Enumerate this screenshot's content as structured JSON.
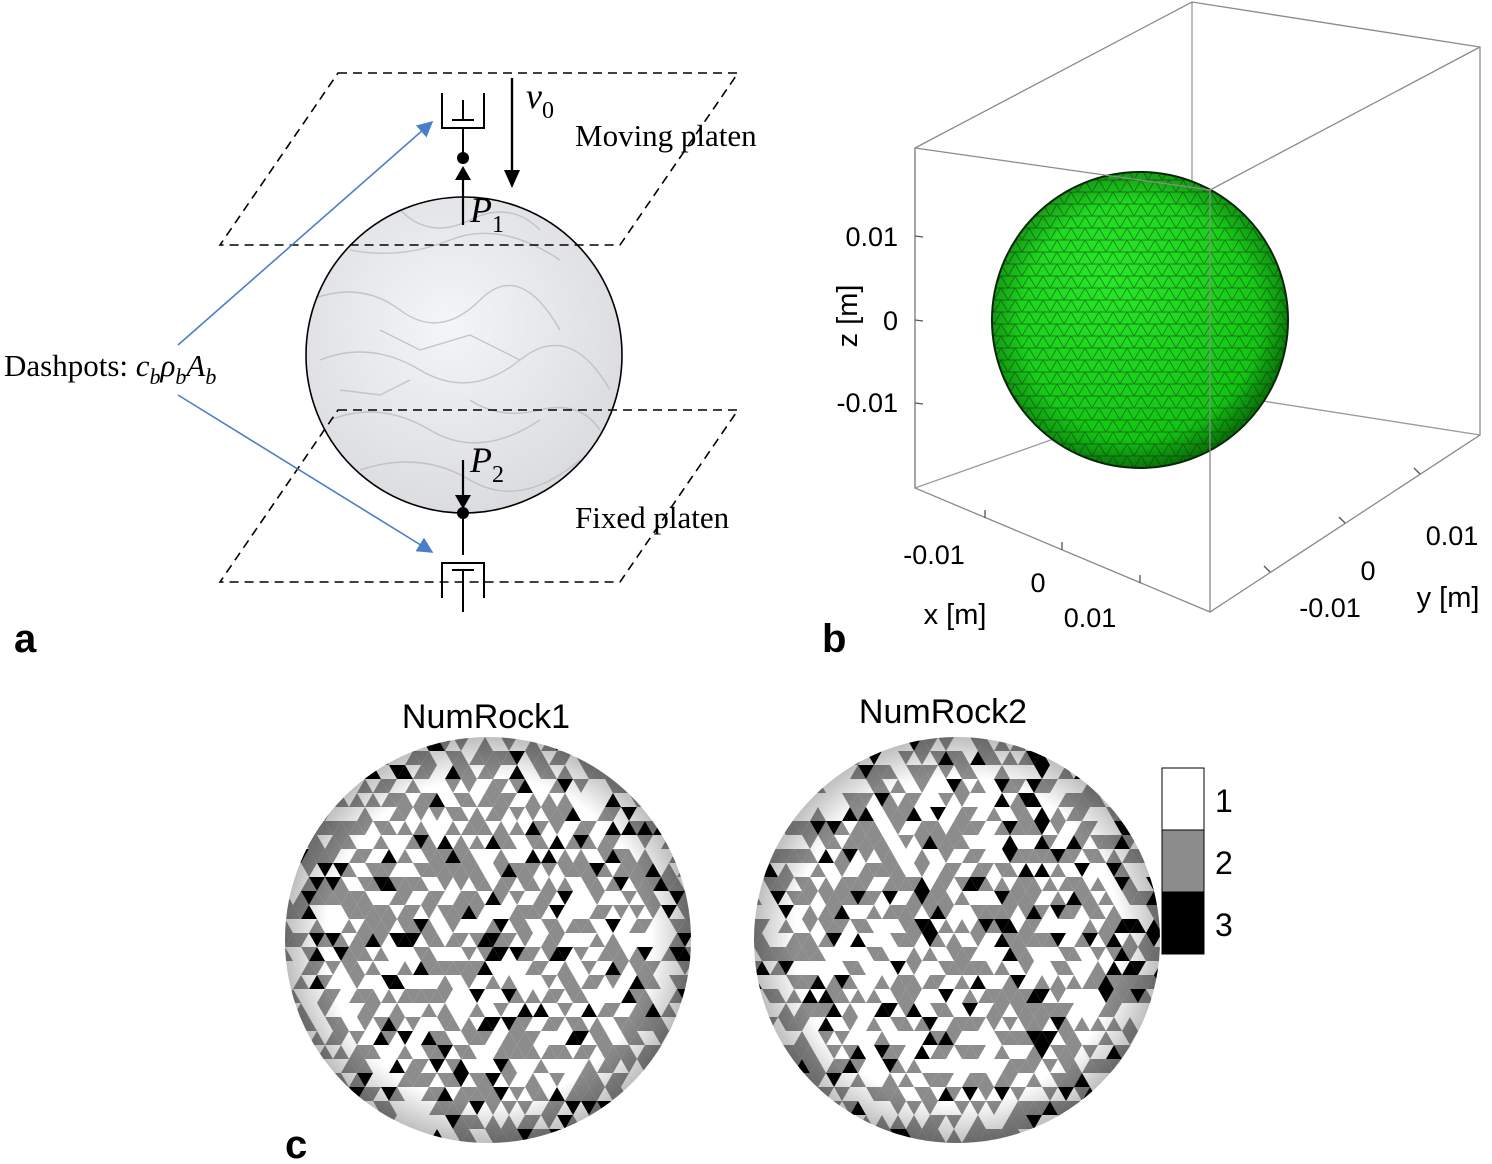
{
  "panels": {
    "a": {
      "letter": "a",
      "moving_platen": "Moving platen",
      "fixed_platen": "Fixed platen",
      "velocity_label": "v",
      "velocity_sub": "0",
      "force_top": "P",
      "force_top_sub": "1",
      "force_bottom": "P",
      "force_bottom_sub": "2",
      "dashpots_prefix": "Dashpots: ",
      "dashpots_formula": [
        {
          "t": "c",
          "s": "b"
        },
        {
          "t": "ρ",
          "s": "b"
        },
        {
          "t": "A",
          "s": "b"
        }
      ],
      "colors": {
        "arrow": "#4a7fc8",
        "outline": "#000000",
        "rock": "#e6e7ea"
      }
    },
    "b": {
      "letter": "b",
      "z_axis_label": "z [m]",
      "x_axis_label": "x [m]",
      "y_axis_label": "y [m]",
      "z_ticks": [
        "0.01",
        "0",
        "-0.01"
      ],
      "x_ticks": [
        "-0.01",
        "0",
        "0.01"
      ],
      "y_ticks": [
        "0.01",
        "0",
        "-0.01"
      ],
      "colors": {
        "sphere": "#17d417",
        "mesh": "#0b3d0b",
        "box": "#9a9a9a"
      }
    },
    "c": {
      "letter": "c",
      "titles": [
        "NumRock1",
        "NumRock2"
      ],
      "legend": [
        {
          "label": "1",
          "color": "#ffffff"
        },
        {
          "label": "2",
          "color": "#8c8c8c"
        },
        {
          "label": "3",
          "color": "#000000"
        }
      ]
    }
  }
}
